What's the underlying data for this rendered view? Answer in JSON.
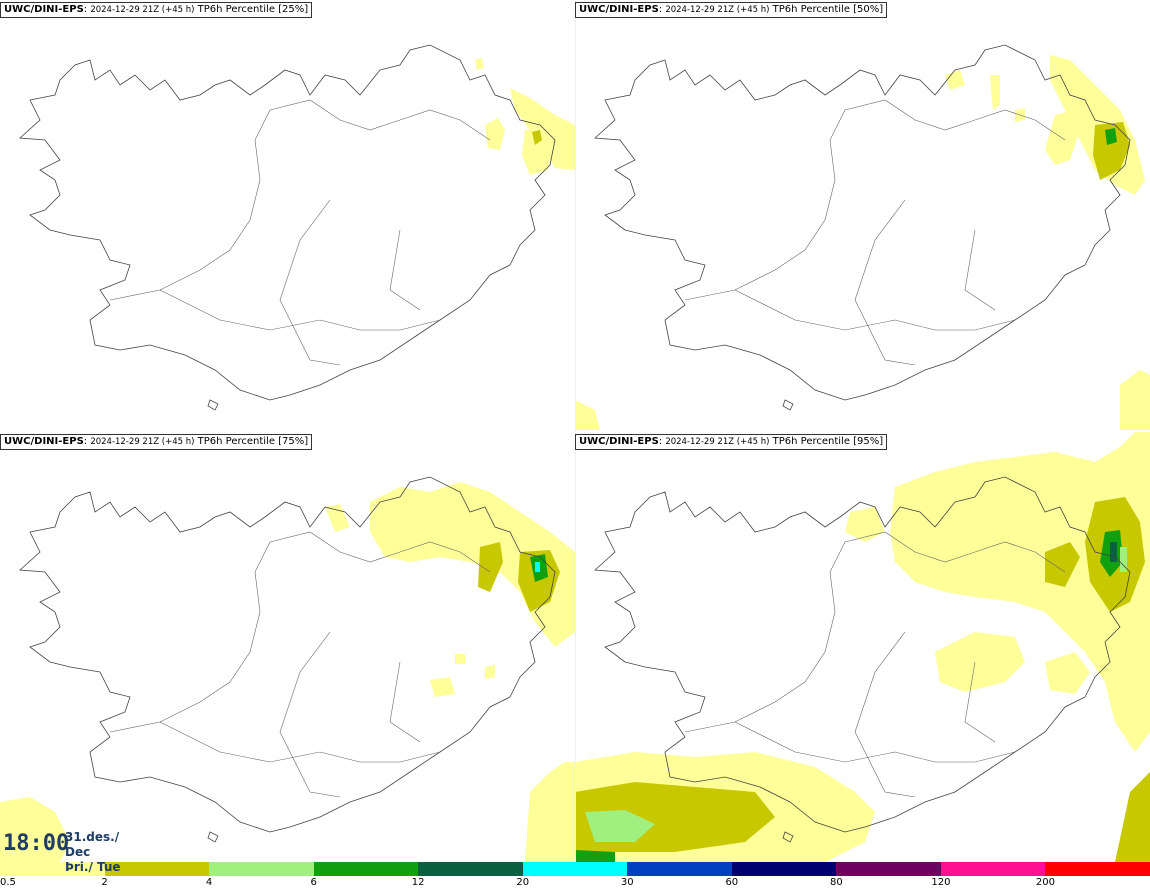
{
  "panels": [
    {
      "model": "UWC/DINI-EPS",
      "run": "2024-12-29 21Z (+45 h)",
      "field": "TP6h Percentile [25%]"
    },
    {
      "model": "UWC/DINI-EPS",
      "run": "2024-12-29 21Z (+45 h)",
      "field": "TP6h Percentile [50%]"
    },
    {
      "model": "UWC/DINI-EPS",
      "run": "2024-12-29 21Z (+45 h)",
      "field": "TP6h Percentile [75%]"
    },
    {
      "model": "UWC/DINI-EPS",
      "run": "2024-12-29 21Z (+45 h)",
      "field": "TP6h Percentile [95%]"
    }
  ],
  "valid_time": {
    "time": "18:00",
    "date_line1": "31.des./ Dec",
    "date_line2": "Þri./ Tue"
  },
  "legend": {
    "labels": [
      "0.5",
      "2",
      "4",
      "6",
      "12",
      "20",
      "30",
      "60",
      "80",
      "120",
      "200"
    ],
    "colors": [
      "#ffff99",
      "#c8c800",
      "#a0f080",
      "#10a010",
      "#0a6040",
      "#00ffff",
      "#0040c0",
      "#000070",
      "#700060",
      "#ff1090",
      "#ff0000"
    ]
  }
}
